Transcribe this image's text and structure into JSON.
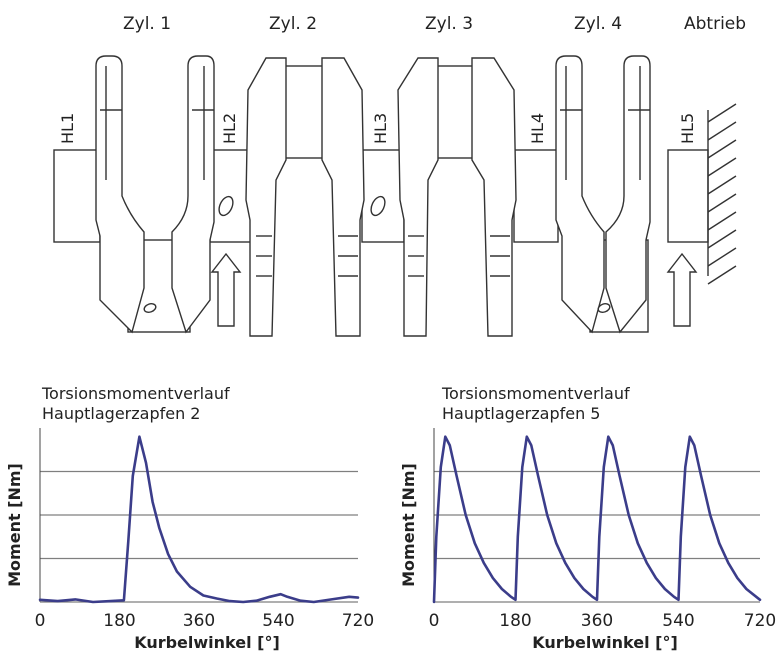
{
  "crankshaft": {
    "cylinders": [
      "Zyl. 1",
      "Zyl. 2",
      "Zyl. 3",
      "Zyl. 4"
    ],
    "output_label": "Abtrieb",
    "main_bearings": [
      "HL1",
      "HL2",
      "HL3",
      "HL4",
      "HL5"
    ]
  },
  "colors": {
    "line": "#3b3d8a",
    "outline": "#333333",
    "grid": "#7f7f7f"
  },
  "chart_data": [
    {
      "type": "line",
      "title": "Torsionsmomentverlauf",
      "subtitle": "Hauptlagerzapfen 2",
      "xlabel": "Kurbelwinkel [°]",
      "ylabel": "Moment [Nm]",
      "xlim": [
        0,
        720
      ],
      "ylim": [
        0,
        4
      ],
      "xticks": [
        "0",
        "180",
        "360",
        "540",
        "720"
      ],
      "grid": true,
      "series": [
        {
          "x": [
            0,
            40,
            80,
            120,
            160,
            190,
            200,
            210,
            225,
            240,
            255,
            270,
            290,
            310,
            340,
            370,
            400,
            430,
            460,
            490,
            520,
            545,
            560,
            590,
            620,
            660,
            700,
            720
          ],
          "values": [
            0.05,
            0.02,
            0.06,
            0.0,
            0.02,
            0.04,
            1.4,
            2.9,
            3.8,
            3.2,
            2.3,
            1.7,
            1.1,
            0.7,
            0.35,
            0.15,
            0.08,
            0.02,
            0.0,
            0.03,
            0.12,
            0.18,
            0.12,
            0.03,
            0.0,
            0.06,
            0.12,
            0.1
          ]
        }
      ]
    },
    {
      "type": "line",
      "title": "Torsionsmomentverlauf",
      "subtitle": "Hauptlagerzapfen 5",
      "xlabel": "Kurbelwinkel [°]",
      "ylabel": "Moment [Nm]",
      "xlim": [
        0,
        720
      ],
      "ylim": [
        0,
        4
      ],
      "xticks": [
        "0",
        "180",
        "360",
        "540",
        "720"
      ],
      "grid": true,
      "series": [
        {
          "x": [
            0,
            5,
            15,
            25,
            35,
            50,
            70,
            90,
            110,
            130,
            150,
            170,
            180,
            185,
            195,
            205,
            215,
            230,
            250,
            270,
            290,
            310,
            330,
            350,
            360,
            365,
            375,
            385,
            395,
            410,
            430,
            450,
            470,
            490,
            510,
            530,
            540,
            545,
            555,
            565,
            575,
            590,
            610,
            630,
            650,
            670,
            690,
            720
          ],
          "values": [
            0.0,
            1.5,
            3.1,
            3.8,
            3.6,
            2.9,
            2.0,
            1.35,
            0.9,
            0.55,
            0.3,
            0.12,
            0.05,
            1.5,
            3.1,
            3.8,
            3.6,
            2.9,
            2.0,
            1.35,
            0.9,
            0.55,
            0.3,
            0.12,
            0.05,
            1.5,
            3.1,
            3.8,
            3.6,
            2.9,
            2.0,
            1.35,
            0.9,
            0.55,
            0.3,
            0.12,
            0.05,
            1.5,
            3.1,
            3.8,
            3.6,
            2.9,
            2.0,
            1.35,
            0.9,
            0.55,
            0.3,
            0.05
          ]
        }
      ]
    }
  ]
}
